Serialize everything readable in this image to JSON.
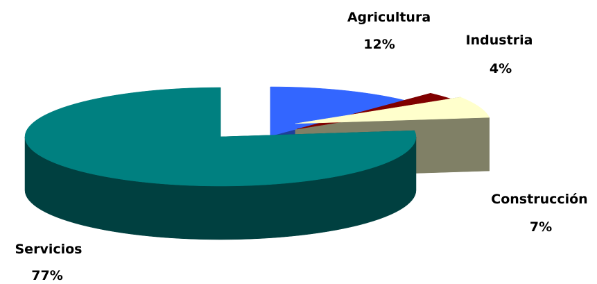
{
  "chart_data": {
    "type": "pie",
    "title": "",
    "style": "3d-exploded",
    "slices": [
      {
        "name": "Agricultura",
        "value": 12,
        "label": "12%",
        "color": "#3366ff",
        "side_color": "#1f3f99"
      },
      {
        "name": "Industria",
        "value": 4,
        "label": "4%",
        "color": "#800000",
        "side_color": "#4d0000"
      },
      {
        "name": "Construcción",
        "value": 7,
        "label": "7%",
        "color": "#ffffcc",
        "side_color": "#808066"
      },
      {
        "name": "Servicios",
        "value": 77,
        "label": "77%",
        "color": "#008080",
        "side_color": "#004040"
      }
    ],
    "legend": "none"
  }
}
